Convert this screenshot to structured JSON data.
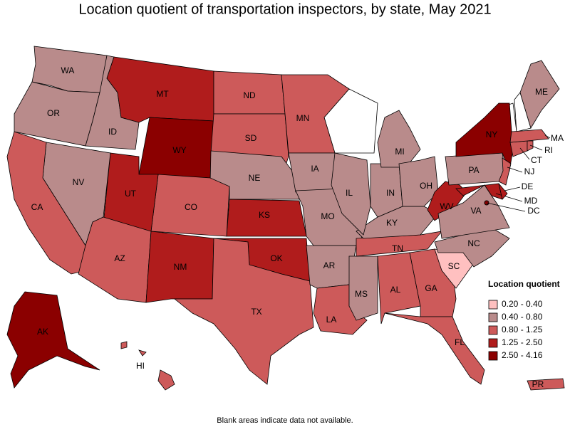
{
  "title": "Location quotient of transportation inspectors, by state, May 2021",
  "legend": {
    "title": "Location quotient",
    "items": [
      {
        "label": "0.20 - 0.40",
        "color": "#ffc0c0"
      },
      {
        "label": "0.40 - 0.80",
        "color": "#b98b8b"
      },
      {
        "label": "0.80 - 1.25",
        "color": "#cd5a5a"
      },
      {
        "label": "1.25 - 2.50",
        "color": "#b01c1c"
      },
      {
        "label": "2.50 - 4.16",
        "color": "#8b0000"
      }
    ]
  },
  "states": [
    {
      "abbr": "WA",
      "color": "#b98b8b"
    },
    {
      "abbr": "OR",
      "color": "#b98b8b"
    },
    {
      "abbr": "ID",
      "color": "#b98b8b"
    },
    {
      "abbr": "MT",
      "color": "#b01c1c"
    },
    {
      "abbr": "WY",
      "color": "#8b0000"
    },
    {
      "abbr": "ND",
      "color": "#cd5a5a"
    },
    {
      "abbr": "SD",
      "color": "#cd5a5a"
    },
    {
      "abbr": "NE",
      "color": "#b98b8b"
    },
    {
      "abbr": "KS",
      "color": "#b01c1c"
    },
    {
      "abbr": "CO",
      "color": "#cd5a5a"
    },
    {
      "abbr": "UT",
      "color": "#b01c1c"
    },
    {
      "abbr": "NV",
      "color": "#b98b8b"
    },
    {
      "abbr": "CA",
      "color": "#cd5a5a"
    },
    {
      "abbr": "AZ",
      "color": "#cd5a5a"
    },
    {
      "abbr": "NM",
      "color": "#b01c1c"
    },
    {
      "abbr": "OK",
      "color": "#b01c1c"
    },
    {
      "abbr": "TX",
      "color": "#cd5a5a"
    },
    {
      "abbr": "MN",
      "color": "#cd5a5a"
    },
    {
      "abbr": "IA",
      "color": "#b98b8b"
    },
    {
      "abbr": "MO",
      "color": "#b98b8b"
    },
    {
      "abbr": "AR",
      "color": "#b98b8b"
    },
    {
      "abbr": "LA",
      "color": "#cd5a5a"
    },
    {
      "abbr": "MS",
      "color": "#b98b8b"
    },
    {
      "abbr": "AL",
      "color": "#cd5a5a"
    },
    {
      "abbr": "GA",
      "color": "#cd5a5a"
    },
    {
      "abbr": "FL",
      "color": "#cd5a5a"
    },
    {
      "abbr": "SC",
      "color": "#ffc0c0"
    },
    {
      "abbr": "NC",
      "color": "#b98b8b"
    },
    {
      "abbr": "TN",
      "color": "#cd5a5a"
    },
    {
      "abbr": "KY",
      "color": "#b98b8b"
    },
    {
      "abbr": "IL",
      "color": "#b98b8b"
    },
    {
      "abbr": "IN",
      "color": "#b98b8b"
    },
    {
      "abbr": "MI",
      "color": "#b98b8b"
    },
    {
      "abbr": "OH",
      "color": "#b98b8b"
    },
    {
      "abbr": "WV",
      "color": "#b01c1c"
    },
    {
      "abbr": "VA",
      "color": "#b98b8b"
    },
    {
      "abbr": "PA",
      "color": "#b98b8b"
    },
    {
      "abbr": "NY",
      "color": "#8b0000"
    },
    {
      "abbr": "NJ",
      "color": "#cd5a5a"
    },
    {
      "abbr": "MD",
      "color": "#b01c1c"
    },
    {
      "abbr": "DE",
      "color": "#b01c1c"
    },
    {
      "abbr": "DC",
      "color": "#8b0000"
    },
    {
      "abbr": "CT",
      "color": "#cd5a5a"
    },
    {
      "abbr": "RI",
      "color": "#cd5a5a"
    },
    {
      "abbr": "MA",
      "color": "#cd5a5a"
    },
    {
      "abbr": "ME",
      "color": "#b98b8b"
    },
    {
      "abbr": "AK",
      "color": "#8b0000"
    },
    {
      "abbr": "HI",
      "color": "#cd5a5a"
    },
    {
      "abbr": "PR",
      "color": "#cd5a5a"
    }
  ],
  "footnote": "Blank areas indicate data not available."
}
